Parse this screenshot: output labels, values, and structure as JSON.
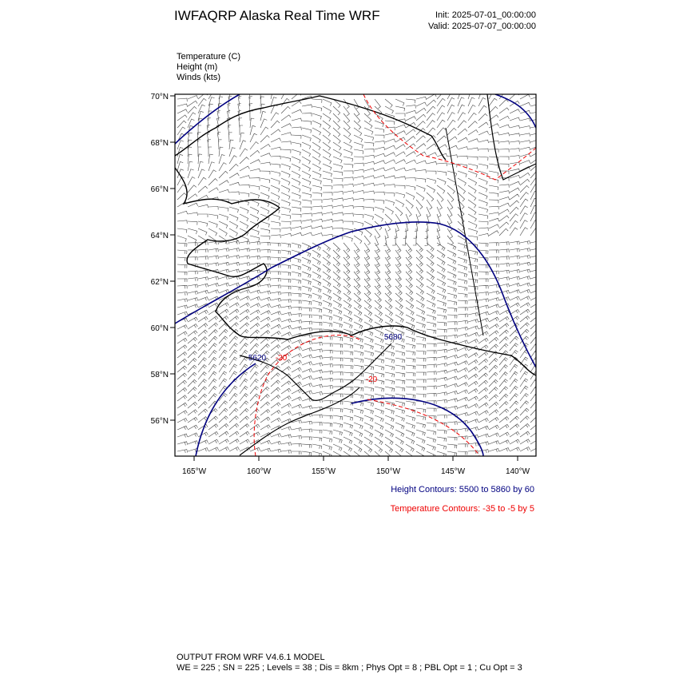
{
  "header": {
    "title": "IWFAQRP Alaska Real Time WRF",
    "init": "Init: 2025-07-01_00:00:00",
    "valid": "Valid: 2025-07-07_00:00:00"
  },
  "fields": [
    "Temperature   (C)",
    "Height   (m)",
    "Winds   (kts)"
  ],
  "map": {
    "lat_ticks": [
      {
        "value": 70,
        "label": "70°N"
      },
      {
        "value": 68,
        "label": "68°N"
      },
      {
        "value": 66,
        "label": "66°N"
      },
      {
        "value": 64,
        "label": "64°N"
      },
      {
        "value": 62,
        "label": "62°N"
      },
      {
        "value": 60,
        "label": "60°N"
      },
      {
        "value": 58,
        "label": "58°N"
      },
      {
        "value": 56,
        "label": "56°N"
      }
    ],
    "lon_ticks": [
      {
        "value": -165,
        "label": "165°W"
      },
      {
        "value": -160,
        "label": "160°W"
      },
      {
        "value": -155,
        "label": "155°W"
      },
      {
        "value": -150,
        "label": "150°W"
      },
      {
        "value": -145,
        "label": "145°W"
      },
      {
        "value": -140,
        "label": "140°W"
      }
    ],
    "contour_labels": [
      "5620",
      "-20",
      "5680",
      "-20"
    ]
  },
  "legend": {
    "height": "Height Contours: 5500 to 5860 by 60",
    "temperature": "Temperature Contours: -35 to -5 by 5"
  },
  "footer": {
    "line1": "OUTPUT FROM WRF V4.6.1 MODEL",
    "line2": "WE = 225 ; SN = 225 ; Levels = 38 ; Dis = 8km ; Phys Opt = 8 ; PBL Opt = 1 ; Cu Opt = 3"
  }
}
